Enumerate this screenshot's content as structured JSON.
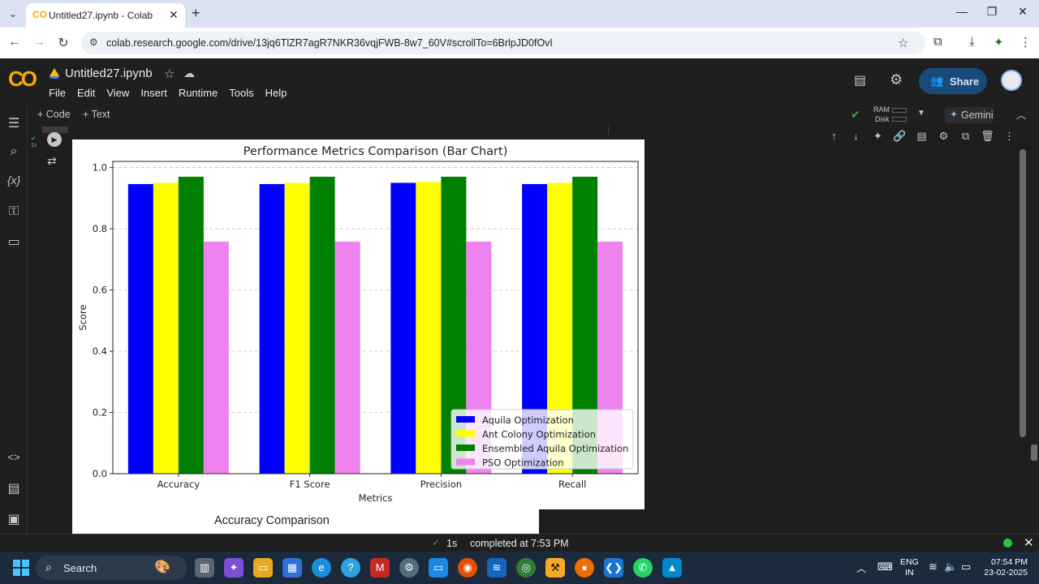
{
  "browser": {
    "tab_title": "Untitled27.ipynb - Colab",
    "tab_favicon": "CO",
    "url": "colab.research.google.com/drive/13jq6TlZR7agR7NKR36vqjFWB-8w7_60V#scrollTo=6BrlpJD0fOvI",
    "tab_menu_icon": "chevron-down-icon",
    "close_glyph": "✕",
    "new_tab_glyph": "+"
  },
  "colab": {
    "logo": "CO",
    "notebook_title": "Untitled27.ipynb",
    "menu": [
      "File",
      "Edit",
      "View",
      "Insert",
      "Runtime",
      "Tools",
      "Help"
    ],
    "share_label": "Share",
    "add_code": "+ Code",
    "add_text": "+ Text",
    "ram_label": "RAM",
    "disk_label": "Disk",
    "gemini_label": "Gemini",
    "exec_time_gutter": "1s"
  },
  "outputs": {
    "second_chart_title": "Accuracy Comparison"
  },
  "status": {
    "duration": "1s",
    "text": "completed at 7:53 PM",
    "dot_color": "#1fc74c"
  },
  "taskbar": {
    "search_label": "Search",
    "lang_line1": "ENG",
    "lang_line2": "IN",
    "time": "07:54 PM",
    "date": "23-02-2025"
  },
  "chart_data": {
    "type": "bar",
    "title": "Performance Metrics Comparison (Bar Chart)",
    "xlabel": "Metrics",
    "ylabel": "Score",
    "ylim": [
      0,
      1.02
    ],
    "yticks": [
      0.0,
      0.2,
      0.4,
      0.6,
      0.8,
      1.0
    ],
    "grid": "y-dashed",
    "legend_position": "lower-right",
    "categories": [
      "Accuracy",
      "F1 Score",
      "Precision",
      "Recall"
    ],
    "series": [
      {
        "name": "Aquila Optimization",
        "color": "#0000ff",
        "values": [
          0.946,
          0.946,
          0.95,
          0.946
        ]
      },
      {
        "name": "Ant Colony Optimization",
        "color": "#ffff00",
        "values": [
          0.95,
          0.95,
          0.953,
          0.95
        ]
      },
      {
        "name": "Ensembled Aquila Optimization",
        "color": "#008000",
        "values": [
          0.97,
          0.97,
          0.97,
          0.97
        ]
      },
      {
        "name": "PSO Optimization",
        "color": "#ee82ee",
        "values": [
          0.758,
          0.758,
          0.758,
          0.758
        ]
      }
    ]
  }
}
